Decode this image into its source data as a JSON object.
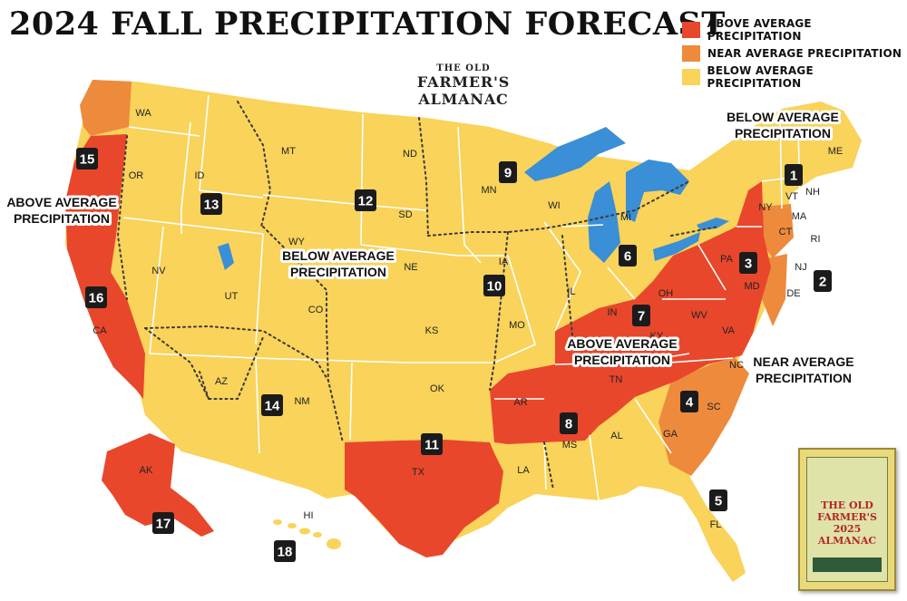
{
  "title": "2024 FALL PRECIPITATION FORECAST",
  "colors": {
    "above": "#e8472c",
    "near": "#ee8a3c",
    "below": "#f9d35a",
    "water": "#3a8fd6",
    "border": "#ffffff"
  },
  "legend": [
    {
      "label": "ABOVE AVERAGE PRECIPITATION",
      "color": "#e8472c"
    },
    {
      "label": "NEAR AVERAGE PRECIPITATION",
      "color": "#ee8a3c"
    },
    {
      "label": "BELOW AVERAGE PRECIPITATION",
      "color": "#f9d35a"
    }
  ],
  "logo": {
    "line1": "THE OLD",
    "line2": "FARMER'S ALMANAC"
  },
  "book_text": "THE OLD FARMER'S 2025 ALMANAC",
  "callouts": {
    "ne": "BELOW AVERAGE\nPRECIPITATION",
    "west": "ABOVE AVERAGE\nPRECIPITATION",
    "central": "BELOW AVERAGE\nPRECIPITATION",
    "ohio": "ABOVE AVERAGE\nPRECIPITATION",
    "se": "NEAR AVERAGE\nPRECIPITATION"
  },
  "states": [
    "WA",
    "OR",
    "ID",
    "MT",
    "ND",
    "SD",
    "WY",
    "NE",
    "NV",
    "UT",
    "CO",
    "KS",
    "CA",
    "AZ",
    "NM",
    "OK",
    "TX",
    "MN",
    "IA",
    "MO",
    "AR",
    "LA",
    "WI",
    "IL",
    "MI",
    "IN",
    "OH",
    "KY",
    "TN",
    "MS",
    "AL",
    "GA",
    "FL",
    "SC",
    "NC",
    "VA",
    "WV",
    "PA",
    "NY",
    "VT",
    "NH",
    "ME",
    "MA",
    "CT",
    "RI",
    "NJ",
    "DE",
    "MD",
    "AK",
    "HI"
  ],
  "regions": [
    "1",
    "2",
    "3",
    "4",
    "5",
    "6",
    "7",
    "8",
    "9",
    "10",
    "11",
    "12",
    "13",
    "14",
    "15",
    "16",
    "17",
    "18"
  ]
}
